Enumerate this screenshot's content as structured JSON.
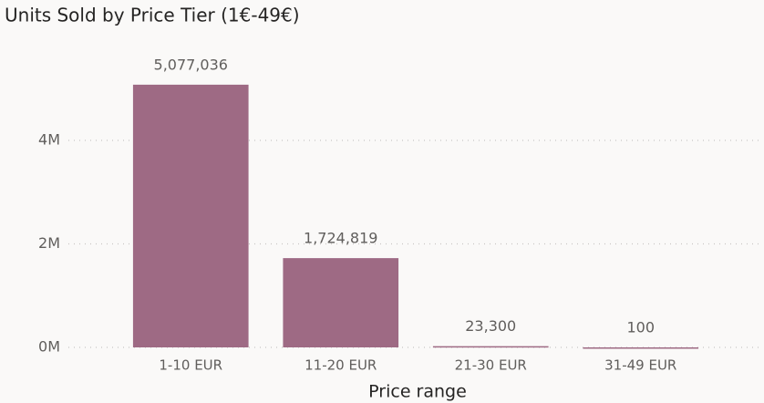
{
  "chart_data": {
    "type": "bar",
    "title": "Units Sold by Price Tier (1€-49€)",
    "categories": [
      "1-10 EUR",
      "11-20 EUR",
      "21-30 EUR",
      "31-49 EUR"
    ],
    "values": [
      5077036,
      1724819,
      23300,
      100
    ],
    "value_labels": [
      "5,077,036",
      "1,724,819",
      "23,300",
      "100"
    ],
    "color": "#9e6a84",
    "xlabel": "Price range",
    "ylim": [
      0,
      5600000
    ],
    "yticks": [
      {
        "value": 0,
        "label": "0M"
      },
      {
        "value": 2000000,
        "label": "2M"
      },
      {
        "value": 4000000,
        "label": "4M"
      }
    ],
    "grid": true
  }
}
